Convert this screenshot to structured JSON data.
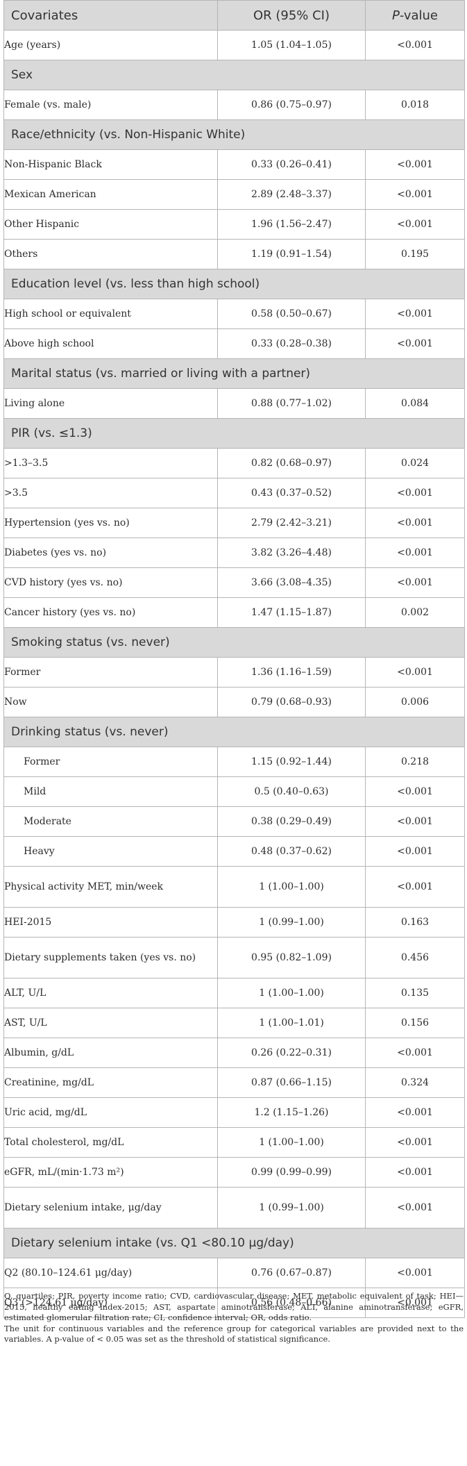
{
  "header": {
    "col1": "Covariates",
    "col2": "OR (95% CI)",
    "col3_italic": "P",
    "col3_rest": "-value"
  },
  "rows": [
    {
      "t": "row",
      "label": "Age (years)",
      "or": "1.05 (1.04–1.05)",
      "p": "<0.001"
    },
    {
      "t": "sec",
      "label": "Sex"
    },
    {
      "t": "row",
      "label": "Female (vs. male)",
      "or": "0.86 (0.75–0.97)",
      "p": "0.018"
    },
    {
      "t": "sec",
      "label": "Race/ethnicity (vs. Non-Hispanic White)"
    },
    {
      "t": "row",
      "label": "Non-Hispanic Black",
      "or": "0.33 (0.26–0.41)",
      "p": "<0.001"
    },
    {
      "t": "row",
      "label": "Mexican American",
      "or": "2.89 (2.48–3.37)",
      "p": "<0.001"
    },
    {
      "t": "row",
      "label": "Other Hispanic",
      "or": "1.96 (1.56–2.47)",
      "p": "<0.001"
    },
    {
      "t": "row",
      "label": "Others",
      "or": "1.19 (0.91–1.54)",
      "p": "0.195"
    },
    {
      "t": "sec",
      "label": "Education level (vs. less than high school)"
    },
    {
      "t": "row",
      "label": "High school or equivalent",
      "or": "0.58 (0.50–0.67)",
      "p": "<0.001"
    },
    {
      "t": "row",
      "label": "Above high school",
      "or": "0.33 (0.28–0.38)",
      "p": "<0.001"
    },
    {
      "t": "sec",
      "label": "Marital status (vs. married or living with a partner)"
    },
    {
      "t": "row",
      "label": "Living alone",
      "or": "0.88 (0.77–1.02)",
      "p": "0.084"
    },
    {
      "t": "sec",
      "label": "PIR (vs. ≤1.3)"
    },
    {
      "t": "row",
      "label": ">1.3–3.5",
      "or": "0.82 (0.68–0.97)",
      "p": "0.024"
    },
    {
      "t": "row",
      "label": ">3.5",
      "or": "0.43 (0.37–0.52)",
      "p": "<0.001"
    },
    {
      "t": "row",
      "label": "Hypertension (yes vs. no)",
      "or": "2.79 (2.42–3.21)",
      "p": "<0.001"
    },
    {
      "t": "row",
      "label": "Diabetes (yes vs. no)",
      "or": "3.82 (3.26–4.48)",
      "p": "<0.001"
    },
    {
      "t": "row",
      "label": "CVD history (yes vs. no)",
      "or": "3.66 (3.08–4.35)",
      "p": "<0.001"
    },
    {
      "t": "row",
      "label": "Cancer history (yes vs. no)",
      "or": "1.47 (1.15–1.87)",
      "p": "0.002"
    },
    {
      "t": "sec",
      "label": "Smoking status (vs. never)"
    },
    {
      "t": "row",
      "label": "Former",
      "or": "1.36 (1.16–1.59)",
      "p": "<0.001"
    },
    {
      "t": "row",
      "label": "Now",
      "or": "0.79 (0.68–0.93)",
      "p": "0.006"
    },
    {
      "t": "sec",
      "label": "Drinking status (vs. never)"
    },
    {
      "t": "row",
      "label": "Former",
      "or": "1.15 (0.92–1.44)",
      "p": "0.218",
      "indent": true
    },
    {
      "t": "row",
      "label": "Mild",
      "or": "0.5 (0.40–0.63)",
      "p": "<0.001",
      "indent": true
    },
    {
      "t": "row",
      "label": "Moderate",
      "or": "0.38 (0.29–0.49)",
      "p": "<0.001",
      "indent": true
    },
    {
      "t": "row",
      "label": "Heavy",
      "or": "0.48 (0.37–0.62)",
      "p": "<0.001",
      "indent": true
    },
    {
      "t": "row",
      "label": "Physical activity MET, min/week",
      "or": "1 (1.00–1.00)",
      "p": "<0.001",
      "tall": true
    },
    {
      "t": "row",
      "label": "HEI-2015",
      "or": "1 (0.99–1.00)",
      "p": "0.163"
    },
    {
      "t": "row",
      "label": "Dietary supplements taken (yes vs. no)",
      "or": "0.95 (0.82–1.09)",
      "p": "0.456",
      "tall": true
    },
    {
      "t": "row",
      "label": "ALT, U/L",
      "or": "1 (1.00–1.00)",
      "p": "0.135"
    },
    {
      "t": "row",
      "label": "AST, U/L",
      "or": "1 (1.00–1.01)",
      "p": "0.156"
    },
    {
      "t": "row",
      "label": "Albumin, g/dL",
      "or": "0.26 (0.22–0.31)",
      "p": "<0.001"
    },
    {
      "t": "row",
      "label": "Creatinine, mg/dL",
      "or": "0.87 (0.66–1.15)",
      "p": "0.324"
    },
    {
      "t": "row",
      "label": "Uric acid, mg/dL",
      "or": "1.2 (1.15–1.26)",
      "p": "<0.001"
    },
    {
      "t": "row",
      "label": "Total cholesterol, mg/dL",
      "or": "1 (1.00–1.00)",
      "p": "<0.001"
    },
    {
      "t": "row",
      "label": "eGFR, mL/(min·1.73 m²)",
      "or": "0.99 (0.99–0.99)",
      "p": "<0.001"
    },
    {
      "t": "row",
      "label": "Dietary selenium intake, μg/day",
      "or": "1 (0.99–1.00)",
      "p": "<0.001",
      "tall": true
    },
    {
      "t": "sec",
      "label": "Dietary selenium intake (vs. Q1 <80.10 μg/day)"
    },
    {
      "t": "row",
      "label": "Q2 (80.10–124.61 μg/day)",
      "or": "0.76 (0.67–0.87)",
      "p": "<0.001"
    },
    {
      "t": "row",
      "label": "Q3 (>124.61 μg/day)",
      "or": "0.56 (0.48–0.66)",
      "p": "<0.001"
    }
  ],
  "footnotes": {
    "abbrev": "Q, quartiles; PIR, poverty income ratio; CVD, cardiovascular disease; MET, metabolic equivalent of task; HEI—2015, healthy eating index-2015; AST, aspartate aminotransferase; ALT, alanine aminotransferase; eGFR, estimated glomerular filtration rate; CI, confidence interval; OR, odds ratio.",
    "note": "The unit for continuous variables and the reference group for categorical variables are provided next to the variables. A p-value of < 0.05 was set as the threshold of statistical significance."
  }
}
